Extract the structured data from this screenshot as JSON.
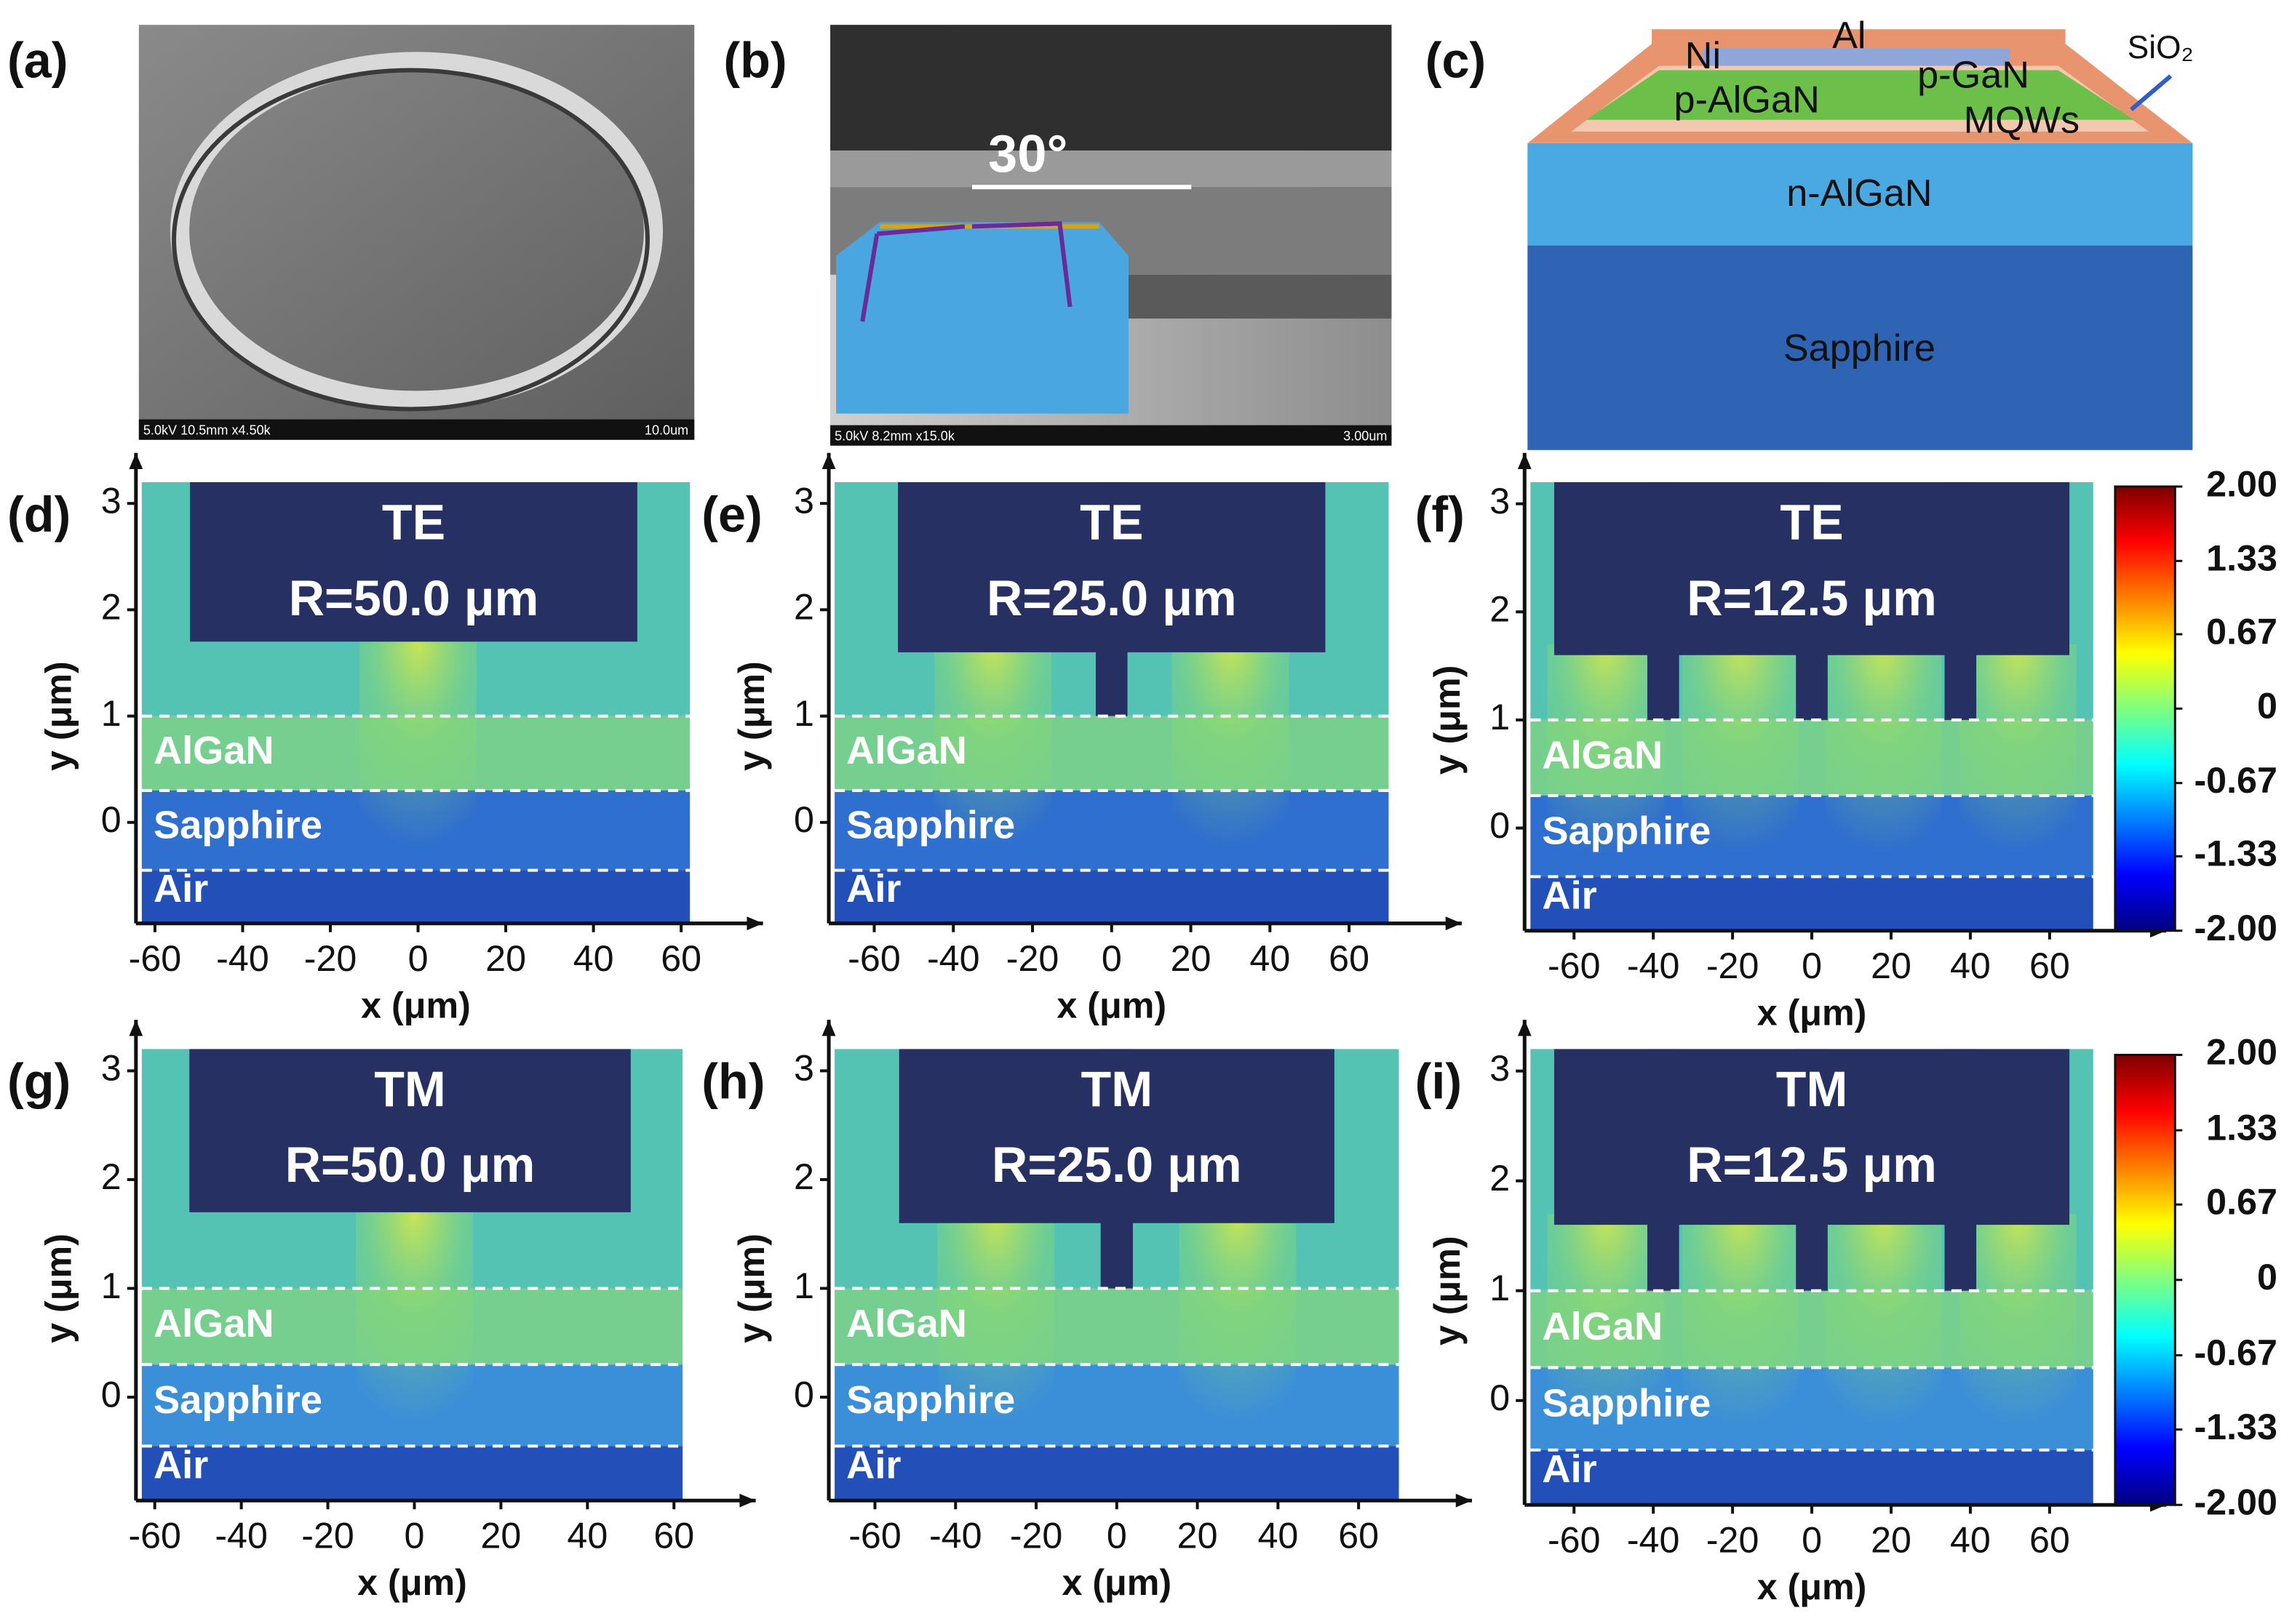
{
  "top_panels": [
    {
      "label": "(a)",
      "info": "5.0kV 10.5mm x4.50k",
      "scale": "10.0um"
    },
    {
      "label": "(b)",
      "angle": "30°",
      "info": "5.0kV 8.2mm x15.0k",
      "scale": "3.00um"
    },
    {
      "label": "(c)",
      "layers": {
        "al": "Al",
        "ni": "Ni",
        "p_gan": "p-GaN",
        "p_algan": "p-AlGaN",
        "mqws": "MQWs",
        "sio2": "SiO₂",
        "n_algan": "n-AlGaN",
        "sapphire": "Sapphire"
      }
    }
  ],
  "fields": [
    {
      "label": "(d)",
      "mode": "TE",
      "radius": "R=50.0 μm",
      "xlim": [
        -63,
        62
      ],
      "ylim": [
        -0.95,
        3.2
      ],
      "xticks": [
        -60,
        -40,
        -20,
        0,
        20,
        40,
        60
      ],
      "yticks": [
        0,
        1,
        2,
        3
      ],
      "xlabel": "x (μm)",
      "ylabel": "y (μm)",
      "regions": [
        "AlGaN",
        "Sapphire",
        "Air"
      ]
    },
    {
      "label": "(e)",
      "mode": "TE",
      "radius": "R=25.0 μm",
      "xlim": [
        -70,
        70
      ],
      "ylim": [
        -0.95,
        3.2
      ],
      "xticks": [
        -60,
        -40,
        -20,
        0,
        20,
        40,
        60
      ],
      "yticks": [
        0,
        1,
        2,
        3
      ],
      "xlabel": "x (μm)",
      "ylabel": "y (μm)",
      "regions": [
        "AlGaN",
        "Sapphire",
        "Air"
      ]
    },
    {
      "label": "(f)",
      "mode": "TE",
      "radius": "R=12.5 μm",
      "xlim": [
        -71,
        71
      ],
      "ylim": [
        -0.95,
        3.2
      ],
      "xticks": [
        -60,
        -40,
        -20,
        0,
        20,
        40,
        60
      ],
      "yticks": [
        0,
        1,
        2,
        3
      ],
      "xlabel": "x (μm)",
      "ylabel": "y (μm)",
      "regions": [
        "AlGaN",
        "Sapphire",
        "Air"
      ]
    },
    {
      "label": "(g)",
      "mode": "TM",
      "radius": "R=50.0 μm",
      "xlim": [
        -63,
        62
      ],
      "ylim": [
        -0.95,
        3.2
      ],
      "xticks": [
        -60,
        -40,
        -20,
        0,
        20,
        40,
        60
      ],
      "yticks": [
        0,
        1,
        2,
        3
      ],
      "xlabel": "x (μm)",
      "ylabel": "y (μm)",
      "regions": [
        "AlGaN",
        "Sapphire",
        "Air"
      ]
    },
    {
      "label": "(h)",
      "mode": "TM",
      "radius": "R=25.0 μm",
      "xlim": [
        -70,
        70
      ],
      "ylim": [
        -0.95,
        3.2
      ],
      "xticks": [
        -60,
        -40,
        -20,
        0,
        20,
        40,
        60
      ],
      "yticks": [
        0,
        1,
        2,
        3
      ],
      "xlabel": "x (μm)",
      "ylabel": "y (μm)",
      "regions": [
        "AlGaN",
        "Sapphire",
        "Air"
      ]
    },
    {
      "label": "(i)",
      "mode": "TM",
      "radius": "R=12.5 μm",
      "xlim": [
        -71,
        71
      ],
      "ylim": [
        -0.95,
        3.2
      ],
      "xticks": [
        -60,
        -40,
        -20,
        0,
        20,
        40,
        60
      ],
      "yticks": [
        0,
        1,
        2,
        3
      ],
      "xlabel": "x (μm)",
      "ylabel": "y (μm)",
      "regions": [
        "AlGaN",
        "Sapphire",
        "Air"
      ]
    }
  ],
  "colorbars": [
    {
      "lim": [
        -2,
        2
      ],
      "ticks": [
        {
          "value": 2,
          "label": "2.00"
        },
        1.33,
        0.67,
        0,
        -0.67,
        -1.33,
        {
          "value": -2,
          "label": "-2.00"
        }
      ]
    },
    {
      "lim": [
        -2,
        2
      ],
      "ticks": [
        {
          "value": 2,
          "label": "2.00"
        },
        1.33,
        0.67,
        0,
        -0.67,
        -1.33,
        {
          "value": -2,
          "label": "-2.00"
        }
      ]
    }
  ]
}
